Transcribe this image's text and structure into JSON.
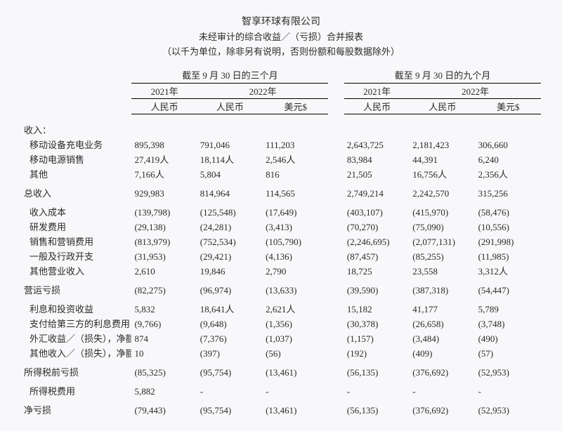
{
  "header": {
    "company": "智享环球有限公司",
    "subtitle": "未经审计的综合收益／（亏损）合并报表",
    "note": "（以千为单位，除非另有说明，否则份额和每股数据除外）"
  },
  "columns": {
    "group3m": "截至 9 月 30 日的三个月",
    "group9m": "截至 9 月 30 日的九个月",
    "y2021": "2021年",
    "y2022": "2022年",
    "rmb": "人民币",
    "usd": "美元$"
  },
  "rows": {
    "revenue_label": "收入：",
    "charging": {
      "label": "移动设备充电业务",
      "v": [
        "895,398",
        "791,046",
        "111,203",
        "2,643,725",
        "2,181,423",
        "306,660"
      ]
    },
    "powerbank": {
      "label": "移动电源销售",
      "v": [
        "27,419人",
        "18,114人",
        "2,546人",
        "83,984",
        "44,391",
        "6,240"
      ]
    },
    "other_rev": {
      "label": "其他",
      "v": [
        "7,166人",
        "5,804",
        "816",
        "21,505",
        "16,756人",
        "2,356人"
      ]
    },
    "total_rev": {
      "label": "总收入",
      "v": [
        "929,983",
        "814,964",
        "114,565",
        "2,749,214",
        "2,242,570",
        "315,256"
      ]
    },
    "cost_rev": {
      "label": "收入成本",
      "v": [
        "(139,798)",
        "(125,548)",
        "(17,649)",
        "(403,107)",
        "(415,970)",
        "(58,476)"
      ]
    },
    "rd": {
      "label": "研发费用",
      "v": [
        "(29,138)",
        "(24,281)",
        "(3,413)",
        "(70,270)",
        "(75,090)",
        "(10,556)"
      ]
    },
    "sm": {
      "label": "销售和营销费用",
      "v": [
        "(813,979)",
        "(752,534)",
        "(105,790)",
        "(2,246,695)",
        "(2,077,131)",
        "(291,998)"
      ]
    },
    "ga": {
      "label": "一般及行政开支",
      "v": [
        "(31,953)",
        "(29,421)",
        "(4,136)",
        "(87,457)",
        "(85,255)",
        "(11,985)"
      ]
    },
    "other_op": {
      "label": "其他营业收入",
      "v": [
        "2,610",
        "19,846",
        "2,790",
        "18,725",
        "23,558",
        "3,312人"
      ]
    },
    "op_loss": {
      "label": "营运亏损",
      "v": [
        "(82,275)",
        "(96,974)",
        "(13,633)",
        "(39,590)",
        "(387,318)",
        "(54,447)"
      ]
    },
    "int_inv": {
      "label": "利息和投资收益",
      "v": [
        "5,832",
        "18,641人",
        "2,621人",
        "15,182",
        "41,177",
        "5,789"
      ]
    },
    "int_3rd": {
      "label": "支付给第三方的利息费用",
      "v": [
        "(9,766)",
        "(9,648)",
        "(1,356)",
        "(30,378)",
        "(26,658)",
        "(3,748)"
      ]
    },
    "fx": {
      "label": "外汇收益／（损失），净额",
      "v": [
        "874",
        "(7,376)",
        "(1,037)",
        "(1,157)",
        "(3,484)",
        "(490)"
      ]
    },
    "other_inc": {
      "label": "其他收入／（损失），净额",
      "v": [
        "10",
        "(397)",
        "(56)",
        "(192)",
        "(409)",
        "(57)"
      ]
    },
    "pretax": {
      "label": "所得税前亏损",
      "v": [
        "(85,325)",
        "(95,754)",
        "(13,461)",
        "(56,135)",
        "(376,692)",
        "(52,953)"
      ]
    },
    "tax": {
      "label": "所得税费用",
      "v": [
        "5,882",
        "-",
        "-",
        "-",
        "-",
        "-"
      ]
    },
    "net_loss": {
      "label": "净亏损",
      "v": [
        "(79,443)",
        "(95,754)",
        "(13,461)",
        "(56,135)",
        "(376,692)",
        "(52,953)"
      ]
    }
  }
}
